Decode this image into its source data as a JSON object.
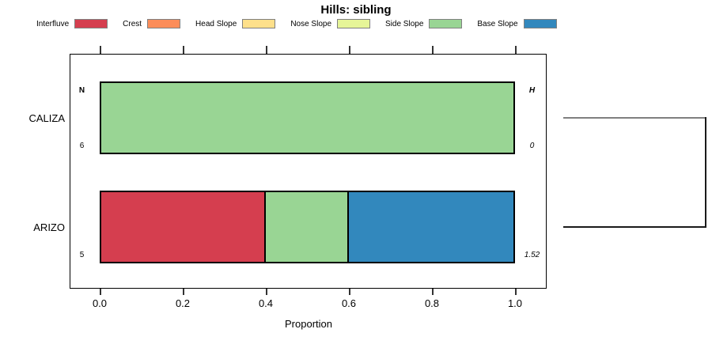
{
  "title": "Hills: sibling",
  "legend": [
    {
      "label": "Interfluve",
      "color": "#D53E4F"
    },
    {
      "label": "Crest",
      "color": "#FC8D59"
    },
    {
      "label": "Head Slope",
      "color": "#FEE08B"
    },
    {
      "label": "Nose Slope",
      "color": "#E6F598"
    },
    {
      "label": "Side Slope",
      "color": "#99D594"
    },
    {
      "label": "Base Slope",
      "color": "#3288BD"
    }
  ],
  "axis": {
    "label": "Proportion",
    "ticks": [
      "0.0",
      "0.2",
      "0.4",
      "0.6",
      "0.8",
      "1.0"
    ]
  },
  "columns": {
    "n_header": "N",
    "h_header": "H"
  },
  "rows": [
    {
      "label": "CALIZA",
      "n": "6",
      "h": "0",
      "segments": [
        {
          "category": "Side Slope",
          "value": 1.0
        }
      ]
    },
    {
      "label": "ARIZO",
      "n": "5",
      "h": "1.52",
      "segments": [
        {
          "category": "Interfluve",
          "value": 0.4
        },
        {
          "category": "Side Slope",
          "value": 0.2
        },
        {
          "category": "Base Slope",
          "value": 0.4
        }
      ]
    }
  ],
  "chart_data": {
    "type": "bar",
    "orientation": "horizontal",
    "stacked": true,
    "title": "Hills: sibling",
    "xlabel": "Proportion",
    "xlim": [
      0.0,
      1.0
    ],
    "x_ticks": [
      0.0,
      0.2,
      0.4,
      0.6,
      0.8,
      1.0
    ],
    "categories": [
      "CALIZA",
      "ARIZO"
    ],
    "series": [
      {
        "name": "Interfluve",
        "color": "#D53E4F",
        "values": [
          0,
          0.4
        ]
      },
      {
        "name": "Crest",
        "color": "#FC8D59",
        "values": [
          0,
          0
        ]
      },
      {
        "name": "Head Slope",
        "color": "#FEE08B",
        "values": [
          0,
          0
        ]
      },
      {
        "name": "Nose Slope",
        "color": "#E6F598",
        "values": [
          0,
          0
        ]
      },
      {
        "name": "Side Slope",
        "color": "#99D594",
        "values": [
          1.0,
          0.2
        ]
      },
      {
        "name": "Base Slope",
        "color": "#3288BD",
        "values": [
          0,
          0.4
        ]
      }
    ],
    "annotations": {
      "N": [
        6,
        5
      ],
      "H": [
        0,
        1.52
      ]
    },
    "legend_position": "top",
    "grid": false,
    "dendrogram": {
      "joined_rows": [
        "CALIZA",
        "ARIZO"
      ],
      "height_column": "H"
    }
  }
}
